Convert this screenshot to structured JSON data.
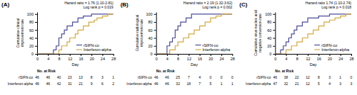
{
  "chart_data": [
    {
      "type": "step",
      "title": "(A)",
      "x_label": "Day",
      "y_label": "Cumulative clinical improvement rate",
      "xlim": [
        0,
        28
      ],
      "ylim": [
        0,
        105
      ],
      "xticks": [
        0,
        4,
        8,
        12,
        16,
        20,
        24,
        28
      ],
      "yticks": [
        0,
        20,
        40,
        60,
        80,
        100
      ],
      "grid": false,
      "legend": "lower right",
      "annotations": [
        "Hazard ratio = 1.76 (1.10-2.81)",
        "Log rank p = 0.019"
      ],
      "series": [
        {
          "name": "rSIFN-co",
          "color": "#4B4B9A",
          "x": [
            0,
            6,
            6,
            7,
            7,
            8,
            8,
            9,
            9,
            10,
            10,
            11,
            11,
            13,
            13,
            15,
            15,
            17,
            17,
            20,
            20,
            28
          ],
          "values": [
            0,
            0,
            10,
            10,
            20,
            20,
            40,
            40,
            50,
            50,
            60,
            60,
            70,
            70,
            80,
            80,
            90,
            90,
            95,
            95,
            100,
            100
          ]
        },
        {
          "name": "Interferon-alpha",
          "color": "#D4A840",
          "x": [
            0,
            8,
            8,
            9,
            9,
            11,
            11,
            12,
            12,
            14,
            14,
            15,
            15,
            17,
            17,
            19,
            19,
            21,
            21,
            22,
            22,
            24,
            24,
            26,
            26,
            28
          ],
          "values": [
            0,
            0,
            10,
            10,
            20,
            20,
            30,
            30,
            40,
            40,
            50,
            50,
            60,
            60,
            70,
            70,
            80,
            80,
            85,
            85,
            90,
            90,
            95,
            95,
            100,
            100
          ]
        }
      ],
      "risk_table": {
        "title": "No. at Risk",
        "x": [
          0,
          4,
          8,
          12,
          16,
          20,
          24,
          28
        ],
        "rows": [
          {
            "name": "rSIFN-co",
            "values": [
              46,
              46,
              40,
              23,
              13,
              8,
              3,
              1
            ]
          },
          {
            "name": "Interferon-alpha",
            "values": [
              46,
              46,
              42,
              31,
              21,
              9,
              6,
              2
            ]
          }
        ]
      }
    },
    {
      "type": "step",
      "title": "(B)",
      "x_label": "Day",
      "y_label": "Cumulative radiological improvement rate",
      "xlim": [
        0,
        28
      ],
      "ylim": [
        0,
        105
      ],
      "xticks": [
        0,
        4,
        8,
        12,
        16,
        20,
        24,
        28
      ],
      "yticks": [
        0,
        20,
        40,
        60,
        80,
        100
      ],
      "grid": false,
      "legend": "lower right",
      "annotations": [
        "Hazard ratio = 2.19 (1.32-3.62)",
        "Log rank p = 0.002"
      ],
      "series": [
        {
          "name": "rSIFN-co",
          "color": "#4B4B9A",
          "x": [
            0,
            4,
            4,
            5,
            5,
            6,
            6,
            7,
            7,
            8,
            8,
            9,
            9,
            11,
            11,
            13,
            13,
            28
          ],
          "values": [
            0,
            0,
            20,
            20,
            30,
            30,
            40,
            40,
            60,
            60,
            70,
            70,
            80,
            80,
            90,
            90,
            100,
            100
          ]
        },
        {
          "name": "Interferon-alpha",
          "color": "#D4A840",
          "x": [
            0,
            5,
            5,
            7,
            7,
            8,
            8,
            10,
            10,
            12,
            12,
            14,
            14,
            16,
            16,
            18,
            18,
            20,
            20,
            22,
            22,
            24,
            24,
            28
          ],
          "values": [
            0,
            0,
            10,
            10,
            20,
            20,
            30,
            30,
            40,
            40,
            50,
            50,
            60,
            60,
            70,
            70,
            80,
            80,
            90,
            90,
            95,
            95,
            100,
            100
          ]
        }
      ],
      "risk_table": {
        "title": "No. at Risk",
        "x": [
          0,
          4,
          8,
          12,
          16,
          20,
          24,
          28
        ],
        "rows": [
          {
            "name": "rSIFN-co",
            "values": [
              46,
              46,
              25,
              7,
              4,
              0,
              0,
              0
            ]
          },
          {
            "name": "Interferon-alpha",
            "values": [
              46,
              46,
              32,
              18,
              7,
              5,
              1,
              1
            ]
          }
        ]
      }
    },
    {
      "type": "step",
      "title": "(C)",
      "x_label": "Day",
      "y_label": "Cumulative virus nucleic acid\nnegative conversion rate",
      "xlim": [
        0,
        28
      ],
      "ylim": [
        0,
        105
      ],
      "xticks": [
        0,
        4,
        8,
        12,
        16,
        20,
        24,
        28
      ],
      "yticks": [
        0,
        20,
        40,
        60,
        80,
        100
      ],
      "grid": false,
      "legend": "lower right",
      "annotations": [
        "Hazard ratio 1.74 (1.10-2.74)",
        "Log rank p = 0.018"
      ],
      "series": [
        {
          "name": "rSIFN-co",
          "color": "#4B4B9A",
          "x": [
            0,
            2,
            2,
            3,
            3,
            4,
            4,
            5,
            5,
            6,
            6,
            7,
            7,
            8,
            8,
            10,
            10,
            12,
            12,
            16,
            16,
            20,
            20,
            28
          ],
          "values": [
            0,
            0,
            10,
            10,
            20,
            20,
            30,
            30,
            40,
            40,
            50,
            50,
            60,
            60,
            70,
            70,
            80,
            80,
            90,
            90,
            95,
            95,
            100,
            100
          ]
        },
        {
          "name": "Interferon-alpha",
          "color": "#D4A840",
          "x": [
            0,
            4,
            4,
            6,
            6,
            8,
            8,
            10,
            10,
            12,
            12,
            14,
            14,
            16,
            16,
            18,
            18,
            20,
            20,
            22,
            22,
            24,
            24,
            26,
            26,
            28
          ],
          "values": [
            0,
            0,
            10,
            10,
            20,
            20,
            30,
            30,
            40,
            40,
            50,
            50,
            60,
            60,
            70,
            70,
            80,
            80,
            85,
            85,
            90,
            90,
            95,
            95,
            100,
            100
          ]
        }
      ],
      "risk_table": {
        "title": "No. at Risk",
        "x": [
          0,
          4,
          8,
          12,
          16,
          20,
          24,
          28
        ],
        "rows": [
          {
            "name": "rSIFN-co",
            "values": [
              46,
              38,
              22,
              12,
              8,
              3,
              1,
              0
            ]
          },
          {
            "name": "Interferon-alpha",
            "values": [
              47,
              32,
              21,
              12,
              5,
              4,
              3,
              3
            ]
          }
        ]
      }
    }
  ]
}
